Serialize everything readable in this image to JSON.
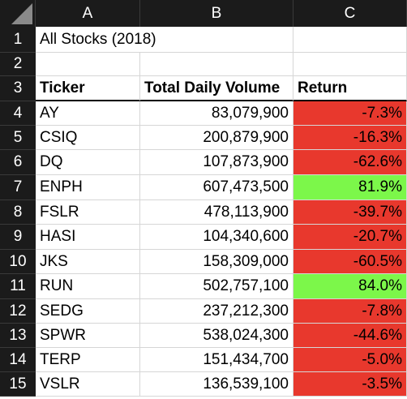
{
  "columns": [
    "A",
    "B",
    "C"
  ],
  "rows": [
    {
      "num": "1",
      "a": "All Stocks (2018)",
      "b": "",
      "c": ""
    },
    {
      "num": "2",
      "a": "",
      "b": "",
      "c": ""
    },
    {
      "num": "3",
      "a": "Ticker",
      "b": "Total Daily Volume",
      "c": "Return"
    },
    {
      "num": "4",
      "a": "AY",
      "b": "83,079,900",
      "c": "-7.3%"
    },
    {
      "num": "5",
      "a": "CSIQ",
      "b": "200,879,900",
      "c": "-16.3%"
    },
    {
      "num": "6",
      "a": "DQ",
      "b": "107,873,900",
      "c": "-62.6%"
    },
    {
      "num": "7",
      "a": "ENPH",
      "b": "607,473,500",
      "c": "81.9%"
    },
    {
      "num": "8",
      "a": "FSLR",
      "b": "478,113,900",
      "c": "-39.7%"
    },
    {
      "num": "9",
      "a": "HASI",
      "b": "104,340,600",
      "c": "-20.7%"
    },
    {
      "num": "10",
      "a": "JKS",
      "b": "158,309,000",
      "c": "-60.5%"
    },
    {
      "num": "11",
      "a": "RUN",
      "b": "502,757,100",
      "c": "84.0%"
    },
    {
      "num": "12",
      "a": "SEDG",
      "b": "237,212,300",
      "c": "-7.8%"
    },
    {
      "num": "13",
      "a": "SPWR",
      "b": "538,024,300",
      "c": "-44.6%"
    },
    {
      "num": "14",
      "a": "TERP",
      "b": "151,434,700",
      "c": "-5.0%"
    },
    {
      "num": "15",
      "a": "VSLR",
      "b": "136,539,100",
      "c": "-3.5%"
    }
  ],
  "colors": {
    "negative": "#e8382d",
    "positive": "#7cf74a",
    "header_bg": "#1b1b1b"
  }
}
